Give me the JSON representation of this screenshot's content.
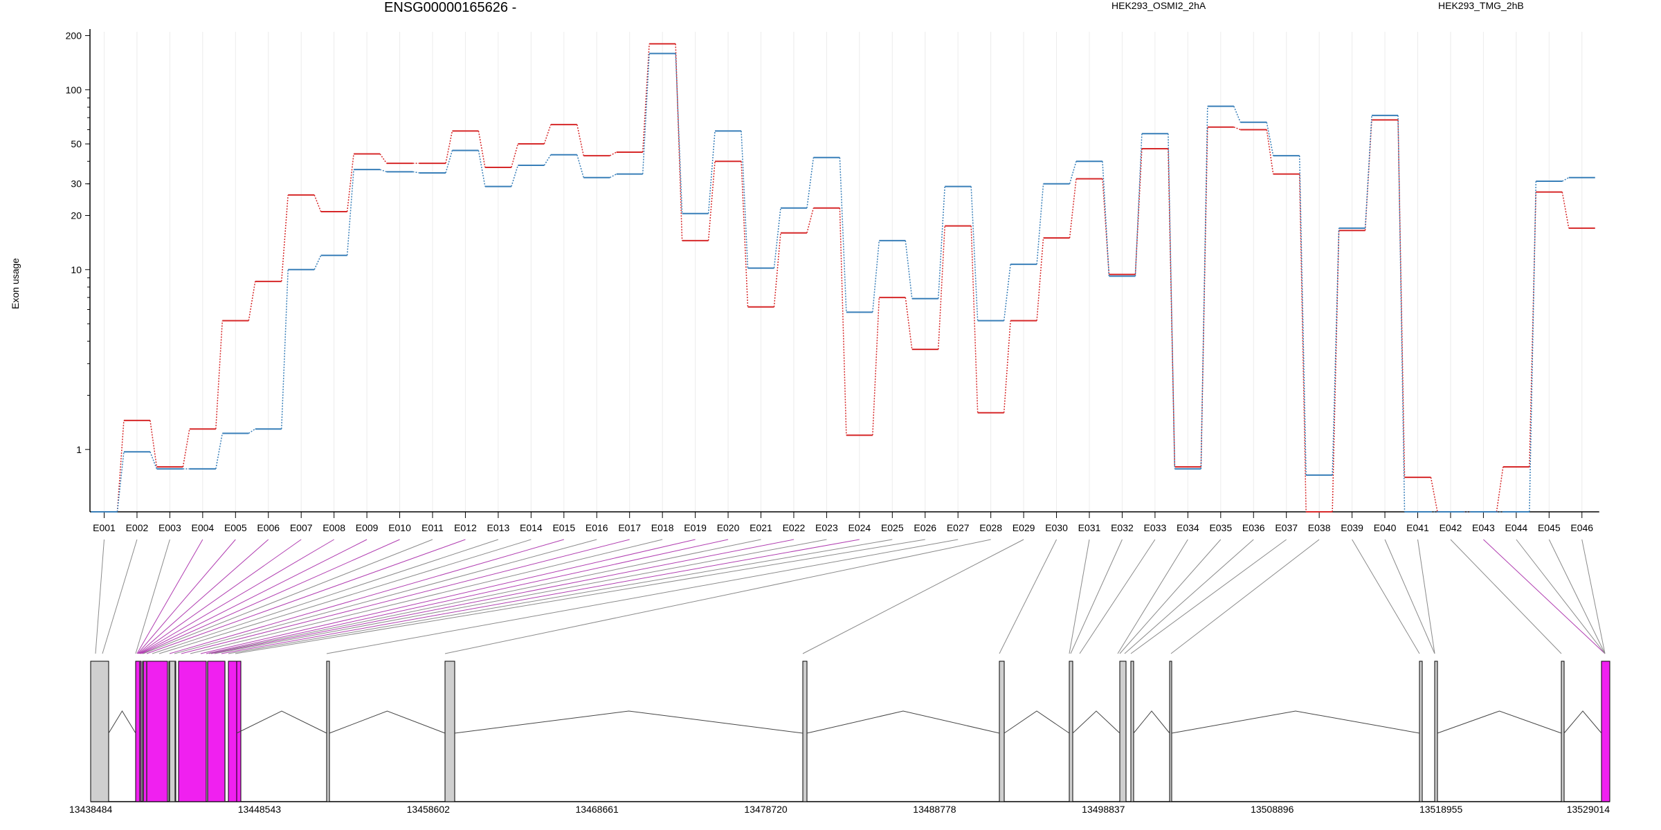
{
  "chart_data": {
    "type": "line",
    "title": "ENSG00000165626 -",
    "ylabel": "Exon usage",
    "xlabel": "",
    "y_scale": "log",
    "ylim": [
      0.45,
      210
    ],
    "y_ticks": [
      1,
      10,
      20,
      30,
      50,
      100,
      200
    ],
    "grid": "vertical lines at each exon",
    "legend_position": "top",
    "categories": [
      "E001",
      "E002",
      "E003",
      "E004",
      "E005",
      "E006",
      "E007",
      "E008",
      "E009",
      "E010",
      "E011",
      "E012",
      "E013",
      "E014",
      "E015",
      "E016",
      "E017",
      "E018",
      "E019",
      "E020",
      "E021",
      "E022",
      "E023",
      "E024",
      "E025",
      "E026",
      "E027",
      "E028",
      "E029",
      "E030",
      "E031",
      "E032",
      "E033",
      "E034",
      "E035",
      "E036",
      "E037",
      "E038",
      "E039",
      "E040",
      "E041",
      "E042",
      "E043",
      "E044",
      "E045",
      "E046"
    ],
    "series": [
      {
        "name": "HEK293_OSMI2_2hA",
        "color": "#d62728",
        "values": [
          0.45,
          1.45,
          0.8,
          1.3,
          5.2,
          8.6,
          26,
          21,
          44,
          39,
          39,
          59,
          37,
          50,
          64,
          43,
          45,
          180,
          14.5,
          40,
          6.2,
          16,
          22,
          1.2,
          7,
          3.6,
          17.5,
          1.6,
          5.2,
          15,
          32,
          9.4,
          47,
          0.8,
          62,
          60,
          34,
          0.45,
          16.5,
          68,
          0.7,
          0.45,
          0.45,
          0.8,
          27,
          17
        ]
      },
      {
        "name": "HEK293_TMG_2hB",
        "color": "#377eb8",
        "values": [
          0.45,
          0.97,
          0.78,
          0.78,
          1.23,
          1.3,
          10,
          12,
          36,
          35,
          34.5,
          46,
          29,
          38,
          43.5,
          32.5,
          34,
          159,
          20.5,
          59,
          10.2,
          22,
          42,
          5.8,
          14.5,
          6.9,
          29,
          5.2,
          10.7,
          30,
          40,
          9.2,
          57,
          0.78,
          81,
          66,
          43,
          0.72,
          17,
          72,
          0.45,
          0.45,
          0.45,
          0.45,
          31,
          32.5
        ]
      }
    ],
    "gene_axis": {
      "ticks": [
        "13438484",
        "13448543",
        "13458602",
        "13468661",
        "13478720",
        "13488778",
        "13498837",
        "13508896",
        "13518955",
        "13529014"
      ],
      "range": [
        13438484,
        13529014
      ],
      "exon_colors": {
        "highlighted": "#f020f0",
        "normal": "#cfcfcf"
      }
    }
  }
}
